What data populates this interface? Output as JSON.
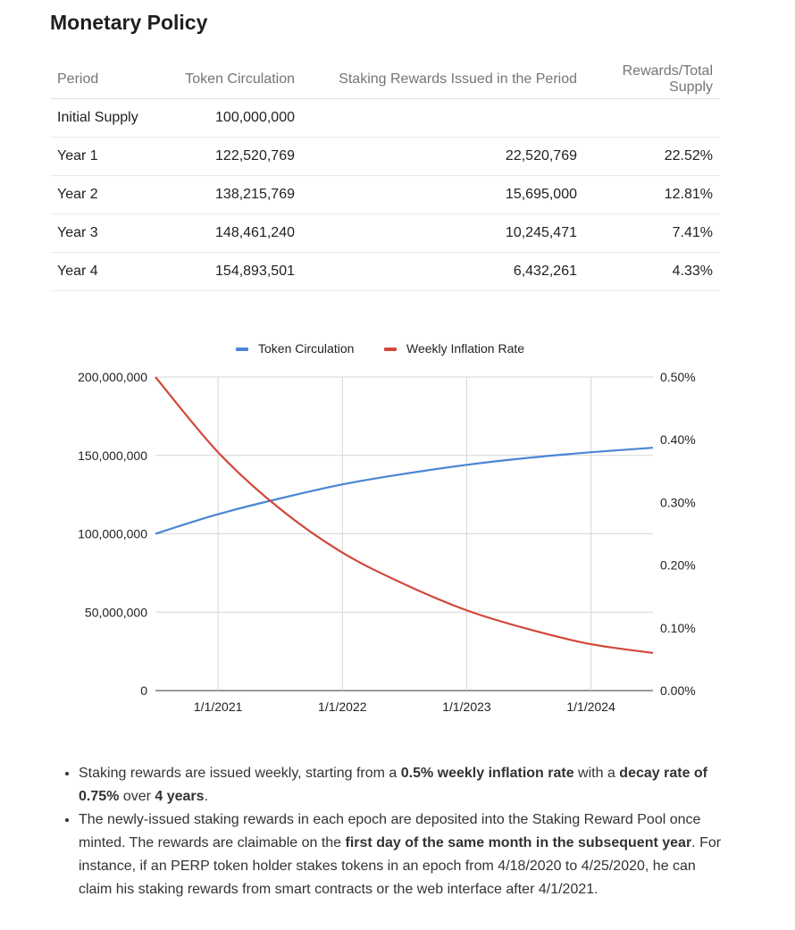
{
  "title": "Monetary Policy",
  "table": {
    "headers": [
      "Period",
      "Token Circulation",
      "Staking Rewards Issued in the Period",
      "Rewards/Total Supply"
    ],
    "rows": [
      [
        "Initial Supply",
        "100,000,000",
        "",
        ""
      ],
      [
        "Year 1",
        "122,520,769",
        "22,520,769",
        "22.52%"
      ],
      [
        "Year 2",
        "138,215,769",
        "15,695,000",
        "12.81%"
      ],
      [
        "Year 3",
        "148,461,240",
        "10,245,471",
        "7.41%"
      ],
      [
        "Year 4",
        "154,893,501",
        "6,432,261",
        "4.33%"
      ]
    ]
  },
  "chart_data": {
    "type": "line",
    "title": "",
    "legend_position": "top",
    "x_ticks": [
      "1/1/2021",
      "1/1/2022",
      "1/1/2023",
      "1/1/2024"
    ],
    "y_left_ticks": [
      "0",
      "50,000,000",
      "100,000,000",
      "150,000,000",
      "200,000,000"
    ],
    "y_left_range": [
      0,
      200000000
    ],
    "y_right_ticks": [
      "0.00%",
      "0.10%",
      "0.20%",
      "0.30%",
      "0.40%",
      "0.50%"
    ],
    "y_right_range": [
      0,
      0.5
    ],
    "grid": true,
    "x_range": [
      "2020-07-01",
      "2024-07-01"
    ],
    "series": [
      {
        "name": "Token Circulation",
        "axis": "left",
        "color": "#4a86d4",
        "x": [
          "2020-07-01",
          "2021-01-01",
          "2021-07-01",
          "2022-01-01",
          "2022-07-01",
          "2023-01-01",
          "2023-07-01",
          "2024-01-01",
          "2024-07-01"
        ],
        "y": [
          100000000,
          112500000,
          122520769,
          131500000,
          138215769,
          144000000,
          148461240,
          152000000,
          154893501
        ]
      },
      {
        "name": "Weekly Inflation Rate",
        "axis": "right",
        "color": "#d2473b",
        "x": [
          "2020-07-01",
          "2021-01-01",
          "2021-07-01",
          "2022-01-01",
          "2022-07-01",
          "2023-01-01",
          "2023-07-01",
          "2024-01-01",
          "2024-07-01"
        ],
        "y": [
          0.5,
          0.38,
          0.29,
          0.22,
          0.17,
          0.128,
          0.098,
          0.074,
          0.06
        ]
      }
    ]
  },
  "notes": [
    {
      "parts": [
        {
          "text": "Staking rewards are issued weekly, starting from a ",
          "bold": false
        },
        {
          "text": "0.5% weekly inflation rate",
          "bold": true
        },
        {
          "text": " with a ",
          "bold": false
        },
        {
          "text": "decay rate of 0.75%",
          "bold": true
        },
        {
          "text": " over ",
          "bold": false
        },
        {
          "text": "4 years",
          "bold": true
        },
        {
          "text": ".",
          "bold": false
        }
      ]
    },
    {
      "parts": [
        {
          "text": "The newly-issued staking rewards in each epoch are deposited into the Staking Reward Pool once minted. The rewards are claimable on the ",
          "bold": false
        },
        {
          "text": "first day of the same month in the subsequent year",
          "bold": true
        },
        {
          "text": ". For instance, if an PERP token holder stakes tokens in an epoch from 4/18/2020 to 4/25/2020, he can claim his staking rewards from smart contracts or the web interface after 4/1/2021.",
          "bold": false
        }
      ]
    }
  ]
}
